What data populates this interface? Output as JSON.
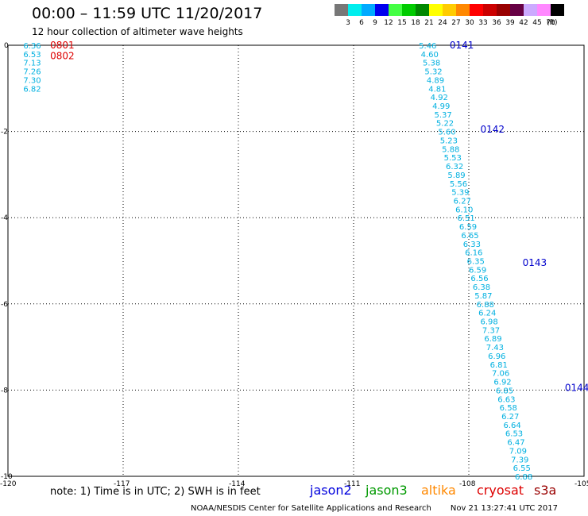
{
  "header": {
    "title": "00:00 – 11:59 UTC 11/20/2017",
    "subtitle": "12 hour collection of altimeter wave heights"
  },
  "color_scale": {
    "unit": "(ft)",
    "bins": [
      {
        "label": "3",
        "color": "#777777"
      },
      {
        "label": "6",
        "color": "#00eeee"
      },
      {
        "label": "9",
        "color": "#00aaff"
      },
      {
        "label": "12",
        "color": "#0000ee"
      },
      {
        "label": "15",
        "color": "#44ff44"
      },
      {
        "label": "18",
        "color": "#00cc00"
      },
      {
        "label": "21",
        "color": "#008800"
      },
      {
        "label": "24",
        "color": "#ffff00"
      },
      {
        "label": "27",
        "color": "#ffcc00"
      },
      {
        "label": "30",
        "color": "#ff8800"
      },
      {
        "label": "33",
        "color": "#ff0000"
      },
      {
        "label": "36",
        "color": "#cc0000"
      },
      {
        "label": "39",
        "color": "#990000"
      },
      {
        "label": "42",
        "color": "#660044"
      },
      {
        "label": "45",
        "color": "#ccaaff"
      },
      {
        "label": "70",
        "color": "#ff88ff"
      },
      {
        "label": "",
        "color": "#000000"
      }
    ]
  },
  "map": {
    "lon_range": [
      -120,
      -105
    ],
    "lat_range": [
      -10,
      0
    ],
    "lon_ticks": [
      "-120",
      "-117",
      "-114",
      "-111",
      "-108",
      "-105"
    ],
    "lat_ticks": [
      "0",
      "-2",
      "-4",
      "-6",
      "-8",
      "-10"
    ],
    "pass_labels": [
      {
        "text": "0141",
        "color": "#0000cc",
        "lon": -108.5,
        "lat": 0.0
      },
      {
        "text": "0142",
        "color": "#0000cc",
        "lon": -107.7,
        "lat": -1.95
      },
      {
        "text": "0143",
        "color": "#0000cc",
        "lon": -106.6,
        "lat": -5.05
      },
      {
        "text": "0144",
        "color": "#0000cc",
        "lon": -105.5,
        "lat": -7.95
      },
      {
        "text": "0801",
        "color": "#dd0000",
        "lon": -118.9,
        "lat": 0.0
      },
      {
        "text": "0802",
        "color": "#dd0000",
        "lon": -118.9,
        "lat": -0.25
      }
    ],
    "track_color": "#00b0e0",
    "track_main": [
      {
        "lon": -109.3,
        "lat": 0.0,
        "v": "5.46"
      },
      {
        "lon": -109.25,
        "lat": -0.2,
        "v": "4.60"
      },
      {
        "lon": -109.2,
        "lat": -0.4,
        "v": "5.38"
      },
      {
        "lon": -109.15,
        "lat": -0.6,
        "v": "5.32"
      },
      {
        "lon": -109.1,
        "lat": -0.8,
        "v": "4.89"
      },
      {
        "lon": -109.05,
        "lat": -1.0,
        "v": "4.81"
      },
      {
        "lon": -109.0,
        "lat": -1.2,
        "v": "4.92"
      },
      {
        "lon": -108.95,
        "lat": -1.4,
        "v": "4.99"
      },
      {
        "lon": -108.9,
        "lat": -1.6,
        "v": "5.37"
      },
      {
        "lon": -108.85,
        "lat": -1.8,
        "v": "5.22"
      },
      {
        "lon": -108.8,
        "lat": -2.0,
        "v": "5.60"
      },
      {
        "lon": -108.75,
        "lat": -2.2,
        "v": "5.23"
      },
      {
        "lon": -108.7,
        "lat": -2.4,
        "v": "5.88"
      },
      {
        "lon": -108.65,
        "lat": -2.6,
        "v": "5.53"
      },
      {
        "lon": -108.6,
        "lat": -2.8,
        "v": "6.32"
      },
      {
        "lon": -108.55,
        "lat": -3.0,
        "v": "5.89"
      },
      {
        "lon": -108.5,
        "lat": -3.2,
        "v": "5.56"
      },
      {
        "lon": -108.45,
        "lat": -3.4,
        "v": "5.39"
      },
      {
        "lon": -108.4,
        "lat": -3.6,
        "v": "6.27"
      },
      {
        "lon": -108.35,
        "lat": -3.8,
        "v": "6.10"
      },
      {
        "lon": -108.3,
        "lat": -4.0,
        "v": "6.51"
      },
      {
        "lon": -108.25,
        "lat": -4.2,
        "v": "6.59"
      },
      {
        "lon": -108.2,
        "lat": -4.4,
        "v": "6.65"
      },
      {
        "lon": -108.15,
        "lat": -4.6,
        "v": "6.33"
      },
      {
        "lon": -108.1,
        "lat": -4.8,
        "v": "6.16"
      },
      {
        "lon": -108.05,
        "lat": -5.0,
        "v": "6.35"
      },
      {
        "lon": -108.0,
        "lat": -5.2,
        "v": "6.59"
      },
      {
        "lon": -107.95,
        "lat": -5.4,
        "v": "6.56"
      },
      {
        "lon": -107.9,
        "lat": -5.6,
        "v": "6.38"
      },
      {
        "lon": -107.85,
        "lat": -5.8,
        "v": "5.87"
      },
      {
        "lon": -107.8,
        "lat": -6.0,
        "v": "6.88"
      },
      {
        "lon": -107.75,
        "lat": -6.2,
        "v": "6.24"
      },
      {
        "lon": -107.7,
        "lat": -6.4,
        "v": "6.98"
      },
      {
        "lon": -107.65,
        "lat": -6.6,
        "v": "7.37"
      },
      {
        "lon": -107.6,
        "lat": -6.8,
        "v": "6.89"
      },
      {
        "lon": -107.55,
        "lat": -7.0,
        "v": "7.43"
      },
      {
        "lon": -107.5,
        "lat": -7.2,
        "v": "6.96"
      },
      {
        "lon": -107.45,
        "lat": -7.4,
        "v": "6.81"
      },
      {
        "lon": -107.4,
        "lat": -7.6,
        "v": "7.06"
      },
      {
        "lon": -107.35,
        "lat": -7.8,
        "v": "6.92"
      },
      {
        "lon": -107.3,
        "lat": -8.0,
        "v": "6.85"
      },
      {
        "lon": -107.25,
        "lat": -8.2,
        "v": "6.63"
      },
      {
        "lon": -107.2,
        "lat": -8.4,
        "v": "6.58"
      },
      {
        "lon": -107.15,
        "lat": -8.6,
        "v": "6.27"
      },
      {
        "lon": -107.1,
        "lat": -8.8,
        "v": "6.64"
      },
      {
        "lon": -107.05,
        "lat": -9.0,
        "v": "6.53"
      },
      {
        "lon": -107.0,
        "lat": -9.2,
        "v": "6.47"
      },
      {
        "lon": -106.95,
        "lat": -9.4,
        "v": "7.09"
      },
      {
        "lon": -106.9,
        "lat": -9.6,
        "v": "7.39"
      },
      {
        "lon": -106.85,
        "lat": -9.8,
        "v": "6.55"
      },
      {
        "lon": -106.8,
        "lat": -10.0,
        "v": "6.88"
      }
    ],
    "track_west": [
      {
        "lon": -119.6,
        "lat": 0.0,
        "v": "6.36"
      },
      {
        "lon": -119.6,
        "lat": -0.2,
        "v": "6.53"
      },
      {
        "lon": -119.6,
        "lat": -0.4,
        "v": "7.13"
      },
      {
        "lon": -119.6,
        "lat": -0.6,
        "v": "7.26"
      },
      {
        "lon": -119.6,
        "lat": -0.8,
        "v": "7.30"
      },
      {
        "lon": -119.6,
        "lat": -1.0,
        "v": "6.82"
      }
    ]
  },
  "footer": {
    "note": "note: 1) Time is in UTC; 2) SWH is in feet",
    "satellites": [
      {
        "name": "jason2",
        "color": "#0000dd"
      },
      {
        "name": "jason3",
        "color": "#009900"
      },
      {
        "name": "altika",
        "color": "#ff8800"
      },
      {
        "name": "cryosat",
        "color": "#dd0000"
      },
      {
        "name": "s3a",
        "color": "#990000"
      }
    ],
    "credit": "NOAA/NESDIS Center for Satellite Applications and Research",
    "timestamp": "Nov 21 13:27:41 UTC 2017"
  }
}
